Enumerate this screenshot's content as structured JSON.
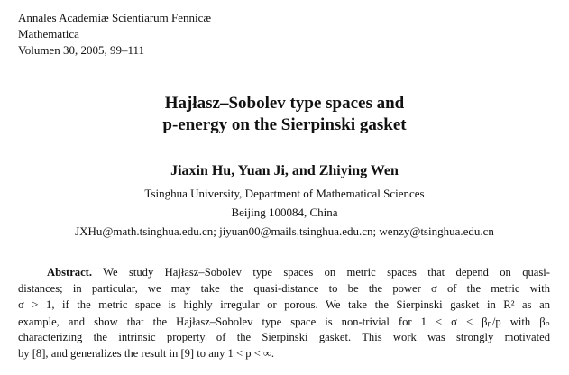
{
  "header": {
    "lines": [
      "Annales Academiæ Scientiarum Fennicæ",
      "Mathematica",
      "Volumen 30, 2005, 99–111"
    ]
  },
  "title": {
    "lines": [
      "Hajłasz–Sobolev type spaces and",
      "p-energy on the Sierpinski gasket"
    ]
  },
  "authors": "Jiaxin Hu, Yuan Ji, and Zhiying Wen",
  "affiliation": {
    "lines": [
      "Tsinghua University, Department of Mathematical Sciences",
      "Beijing 100084, China",
      "JXHu@math.tsinghua.edu.cn; jiyuan00@mails.tsinghua.edu.cn; wenzy@tsinghua.edu.cn"
    ]
  },
  "abstract": {
    "heading": "Abstract.",
    "lines": [
      "We study Hajłasz–Sobolev type spaces on metric spaces that depend on quasi-",
      "distances; in particular, we may take the quasi-distance to be the power σ of the metric with",
      "σ > 1, if the metric space is highly irregular or porous. We take the Sierpinski gasket in R² as an",
      "example, and show that the Hajłasz–Sobolev type space is non-trivial for 1 < σ < βₚ/p with βₚ",
      "characterizing the intrinsic property of the Sierpinski gasket. This work was strongly motivated",
      "by [8], and generalizes the result in [9] to any 1 < p < ∞."
    ]
  }
}
